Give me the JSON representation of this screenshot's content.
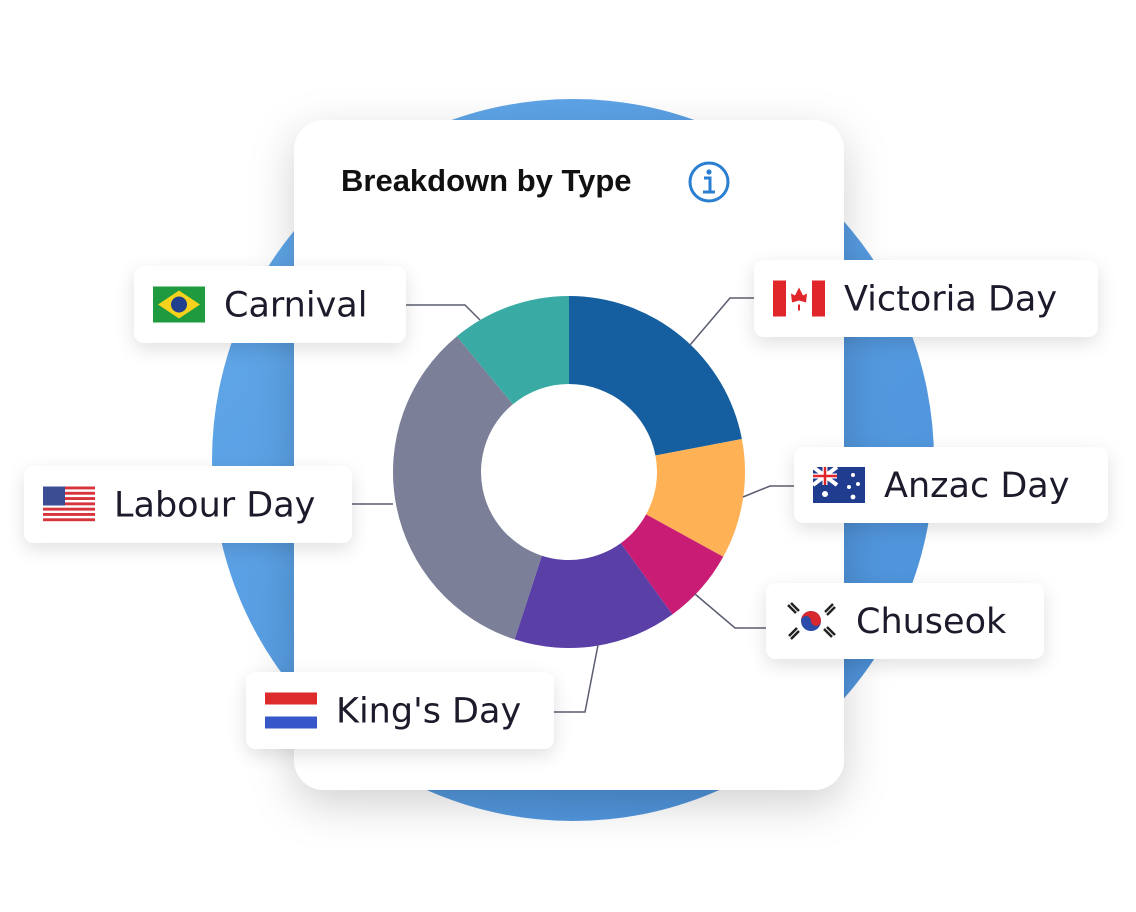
{
  "chart_data": {
    "type": "donut",
    "title": "Breakdown by Type",
    "categories": [
      "Victoria Day",
      "Anzac Day",
      "Chuseok",
      "King's Day",
      "Labour Day",
      "Carnival"
    ],
    "values": [
      22,
      11,
      7,
      15,
      34,
      11
    ],
    "colors": [
      "#155fa0",
      "#ffb155",
      "#c91d75",
      "#5a3fa7",
      "#7b7f98",
      "#3aaba4"
    ]
  }
}
